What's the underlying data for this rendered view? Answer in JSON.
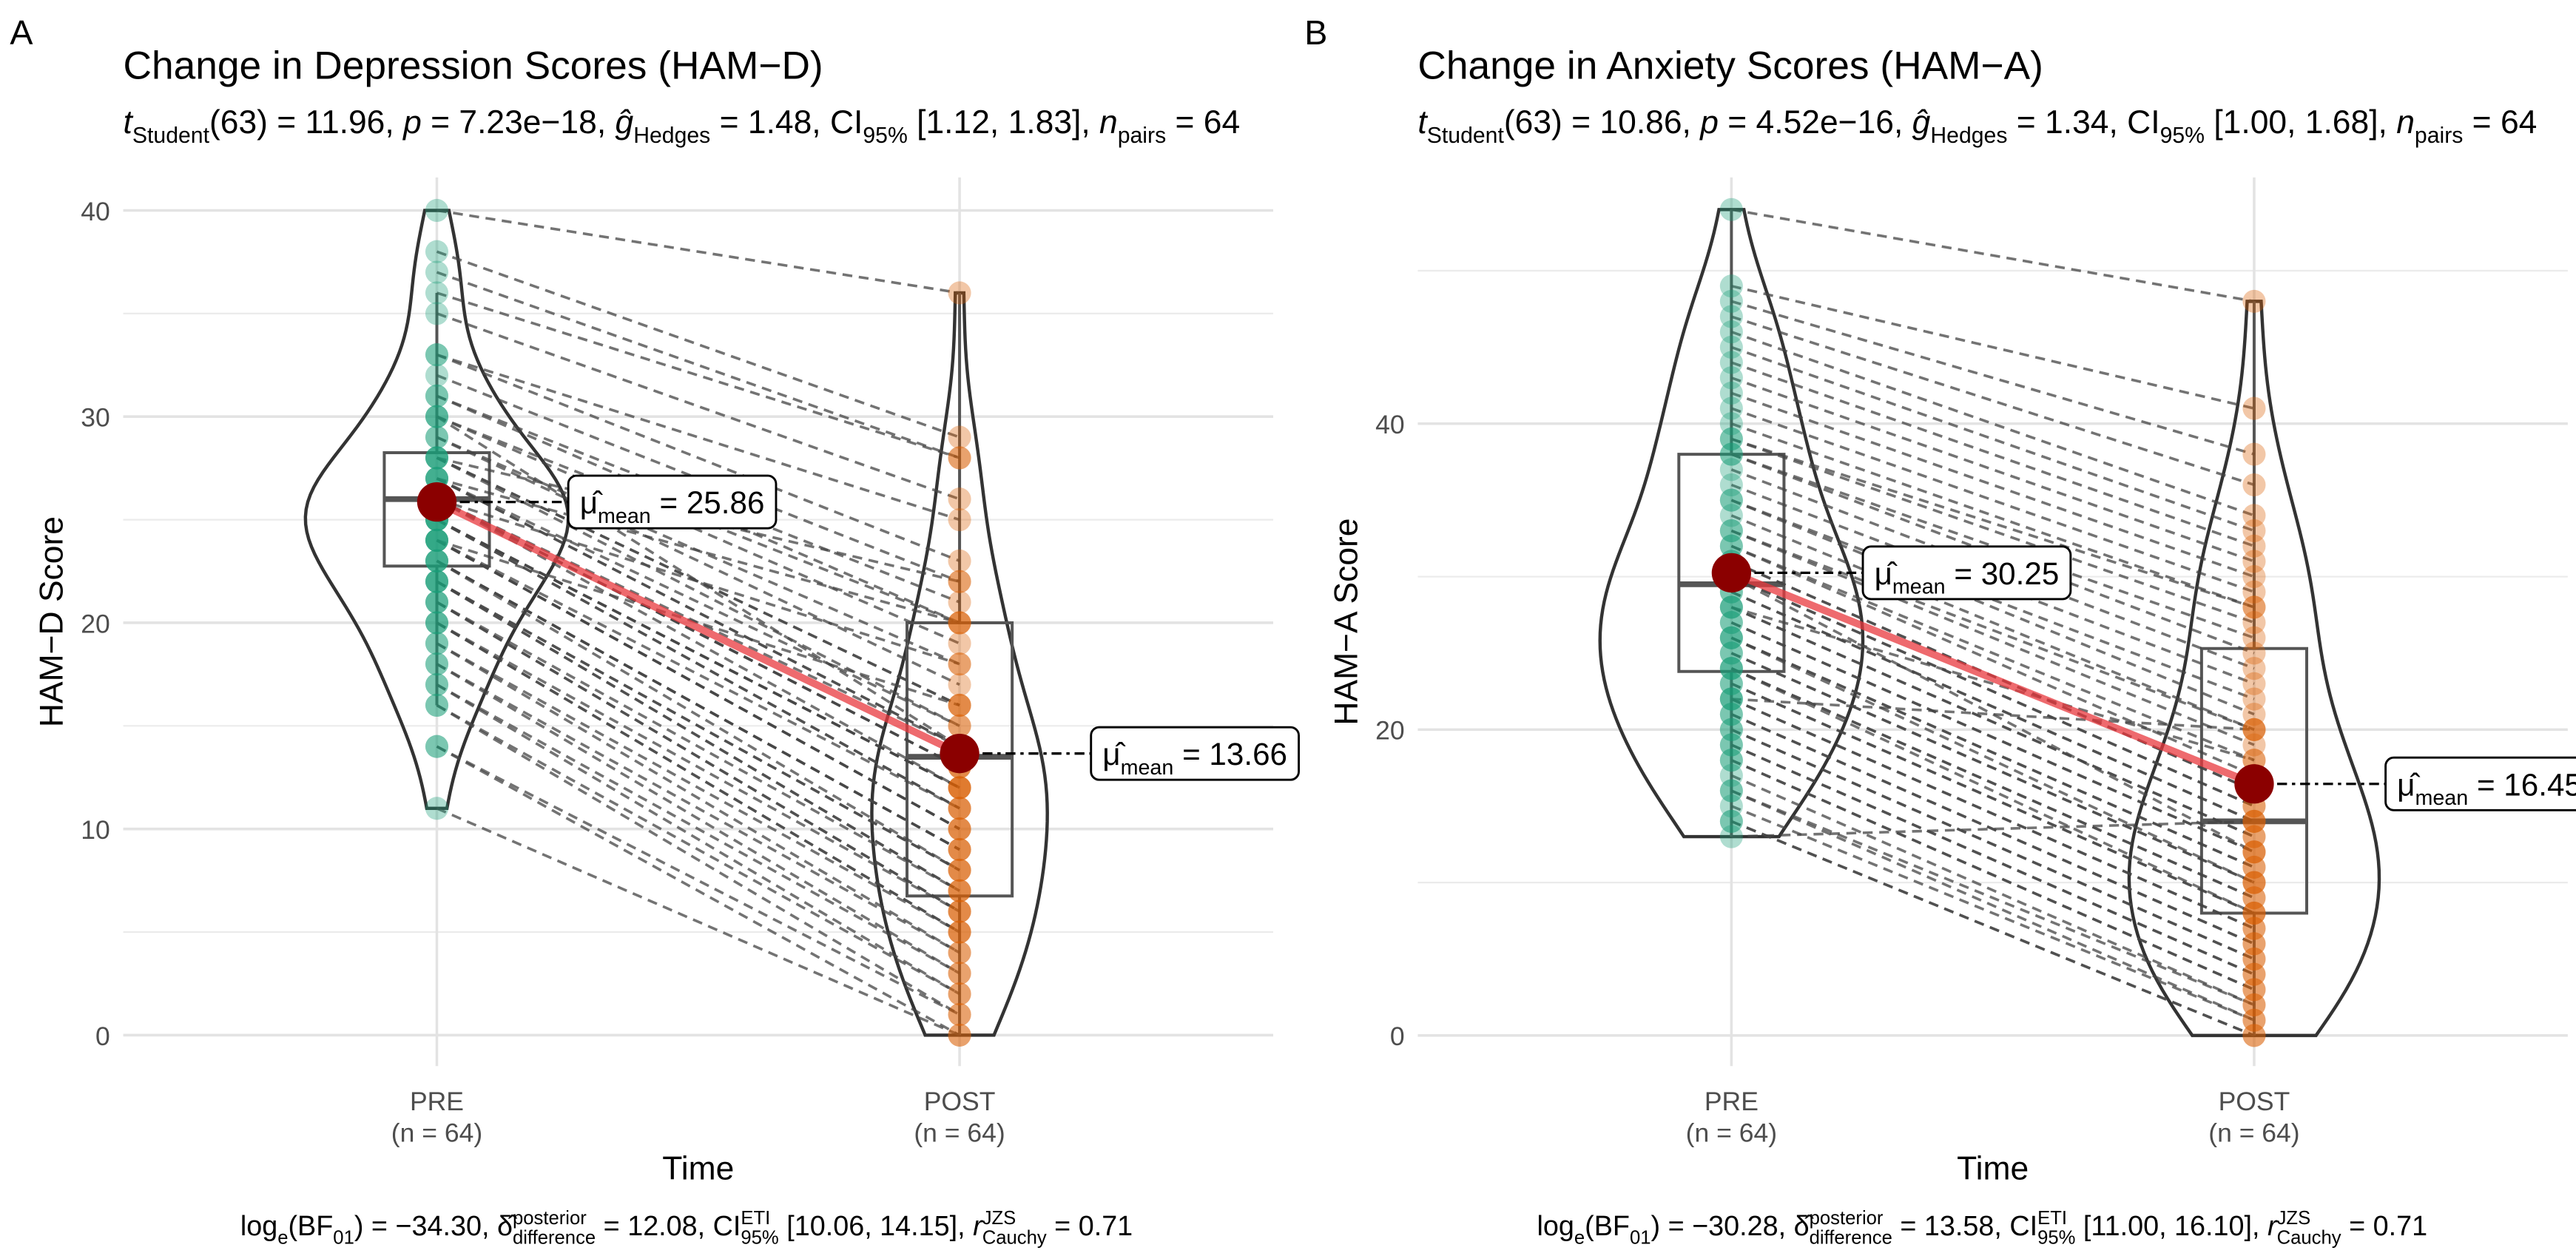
{
  "chart_data": [
    {
      "type": "violin-paired",
      "panel": "A",
      "title": "Change in Depression Scores (HAM−D)",
      "subtitle": [
        {
          "text": "t",
          "s": "i"
        },
        {
          "text": "Student",
          "s": "sub"
        },
        {
          "text": "(63) = 11.96, "
        },
        {
          "text": "p",
          "s": "i"
        },
        {
          "text": " = 7.23e−18, "
        },
        {
          "text": "ĝ",
          "s": "i"
        },
        {
          "text": "Hedges",
          "s": "sub"
        },
        {
          "text": " = 1.48, CI"
        },
        {
          "text": "95%",
          "s": "sub"
        },
        {
          "text": " [1.12, 1.83], "
        },
        {
          "text": "n",
          "s": "i"
        },
        {
          "text": "pairs",
          "s": "sub"
        },
        {
          "text": " = 64"
        }
      ],
      "caption": [
        {
          "text": "log"
        },
        {
          "text": "e",
          "s": "sub"
        },
        {
          "text": "(BF"
        },
        {
          "text": "01",
          "s": "sub"
        },
        {
          "text": ") = −34.30, "
        },
        {
          "text": "δ̂"
        },
        {
          "text": "posterior",
          "s": "sup"
        },
        {
          "text": "difference",
          "s": "sub"
        },
        {
          "text": " = 12.08, CI"
        },
        {
          "text": "ETI",
          "s": "sup"
        },
        {
          "text": "95%",
          "s": "sub"
        },
        {
          "text": " [10.06, 14.15], "
        },
        {
          "text": "r",
          "s": "i"
        },
        {
          "text": "JZS",
          "s": "sup"
        },
        {
          "text": "Cauchy",
          "s": "sub"
        },
        {
          "text": " = 0.71"
        }
      ],
      "x_label": "Time",
      "y_label": "HAM−D Score",
      "categories": [
        "PRE\n(n = 64)",
        "POST\n(n = 64)"
      ],
      "xlim": [
        0.4,
        2.6
      ],
      "ylim": [
        -1.5,
        41.6
      ],
      "yticks": [
        0,
        10,
        20,
        30,
        40
      ],
      "minor_yticks": [
        5,
        15,
        25,
        35
      ],
      "grid": true,
      "series": [
        {
          "color": "#1b9e77",
          "values": [
            40,
            38,
            37,
            36,
            35,
            33,
            33,
            32,
            31,
            31,
            30,
            30,
            29,
            29,
            28,
            28,
            28,
            27,
            27,
            27,
            26,
            26,
            26,
            26,
            26,
            25,
            25,
            25,
            25,
            24,
            24,
            24,
            24,
            23,
            23,
            23,
            23,
            22,
            22,
            22,
            22,
            21,
            21,
            21,
            20,
            20,
            20,
            19,
            19,
            18,
            18,
            17,
            17,
            16,
            16,
            14,
            14,
            11,
            27,
            26,
            28,
            30,
            24,
            25
          ],
          "box": [
            16,
            22.75,
            26,
            28.25,
            36
          ],
          "mean": 25.86,
          "mean_label": [
            {
              "text": "μ̂"
            },
            {
              "text": "mean",
              "s": "sub"
            },
            {
              "text": " = 25.86"
            }
          ]
        },
        {
          "color": "#d95f02",
          "values": [
            36,
            29,
            28,
            28,
            26,
            25,
            23,
            22,
            21,
            20,
            20,
            19,
            18,
            17,
            16,
            16,
            15,
            15,
            14,
            14,
            14,
            13,
            13,
            13,
            12,
            12,
            12,
            11,
            11,
            11,
            10,
            10,
            10,
            9,
            9,
            9,
            8,
            8,
            8,
            7,
            7,
            7,
            6,
            6,
            6,
            5,
            5,
            5,
            4,
            4,
            3,
            3,
            2,
            2,
            1,
            1,
            0,
            0,
            20,
            18,
            22,
            14,
            16,
            12
          ],
          "box": [
            0,
            6.75,
            13.5,
            20,
            36
          ],
          "mean": 13.66,
          "mean_label": [
            {
              "text": "μ̂"
            },
            {
              "text": "mean",
              "s": "sub"
            },
            {
              "text": " = 13.66"
            }
          ]
        }
      ]
    },
    {
      "type": "violin-paired",
      "panel": "B",
      "title": "Change in Anxiety Scores (HAM−A)",
      "subtitle": [
        {
          "text": "t",
          "s": "i"
        },
        {
          "text": "Student",
          "s": "sub"
        },
        {
          "text": "(63) = 10.86, "
        },
        {
          "text": "p",
          "s": "i"
        },
        {
          "text": " = 4.52e−16, "
        },
        {
          "text": "ĝ",
          "s": "i"
        },
        {
          "text": "Hedges",
          "s": "sub"
        },
        {
          "text": " = 1.34, CI"
        },
        {
          "text": "95%",
          "s": "sub"
        },
        {
          "text": " [1.00, 1.68], "
        },
        {
          "text": "n",
          "s": "i"
        },
        {
          "text": "pairs",
          "s": "sub"
        },
        {
          "text": " = 64"
        }
      ],
      "caption": [
        {
          "text": "log"
        },
        {
          "text": "e",
          "s": "sub"
        },
        {
          "text": "(BF"
        },
        {
          "text": "01",
          "s": "sub"
        },
        {
          "text": ") = −30.28, "
        },
        {
          "text": "δ̂"
        },
        {
          "text": "posterior",
          "s": "sup"
        },
        {
          "text": "difference",
          "s": "sub"
        },
        {
          "text": " = 13.58, CI"
        },
        {
          "text": "ETI",
          "s": "sup"
        },
        {
          "text": "95%",
          "s": "sub"
        },
        {
          "text": " [11.00, 16.10], "
        },
        {
          "text": "r",
          "s": "i"
        },
        {
          "text": "JZS",
          "s": "sup"
        },
        {
          "text": "Cauchy",
          "s": "sub"
        },
        {
          "text": " = 0.71"
        }
      ],
      "x_label": "Time",
      "y_label": "HAM−A Score",
      "categories": [
        "PRE\n(n = 64)",
        "POST\n(n = 64)"
      ],
      "xlim": [
        0.4,
        2.6
      ],
      "ylim": [
        -2,
        56.1
      ],
      "yticks": [
        0,
        20,
        40
      ],
      "minor_yticks": [
        10,
        30,
        50
      ],
      "grid": true,
      "series": [
        {
          "color": "#1b9e77",
          "values": [
            54,
            49,
            48,
            47,
            46,
            45,
            44,
            43,
            42,
            41,
            40,
            39,
            39,
            38,
            38,
            37,
            36,
            35,
            35,
            34,
            33,
            33,
            32,
            32,
            31,
            31,
            30,
            30,
            29,
            29,
            28,
            28,
            27,
            27,
            26,
            26,
            25,
            25,
            24,
            24,
            23,
            23,
            22,
            22,
            21,
            21,
            20,
            20,
            19,
            19,
            18,
            18,
            17,
            16,
            16,
            15,
            14,
            14,
            13,
            30,
            28,
            26,
            24,
            22
          ],
          "box": [
            13,
            23.8,
            29.5,
            38,
            54
          ],
          "mean": 30.25,
          "mean_label": [
            {
              "text": "μ̂"
            },
            {
              "text": "mean",
              "s": "sub"
            },
            {
              "text": " = 30.25"
            }
          ]
        },
        {
          "color": "#d95f02",
          "values": [
            48,
            41,
            38,
            36,
            34,
            33,
            32,
            31,
            30,
            29,
            28,
            28,
            27,
            26,
            25,
            24,
            23,
            22,
            21,
            20,
            20,
            19,
            18,
            17,
            16,
            16,
            15,
            15,
            14,
            14,
            13,
            13,
            12,
            12,
            11,
            11,
            10,
            10,
            9,
            9,
            8,
            8,
            7,
            7,
            6,
            6,
            5,
            5,
            4,
            4,
            3,
            3,
            2,
            2,
            1,
            1,
            0,
            0,
            14,
            12,
            18,
            10,
            8,
            20
          ],
          "box": [
            0,
            8,
            14,
            25.3,
            48
          ],
          "mean": 16.45,
          "mean_label": [
            {
              "text": "μ̂"
            },
            {
              "text": "mean",
              "s": "sub"
            },
            {
              "text": " = 16.45"
            }
          ]
        }
      ]
    }
  ]
}
